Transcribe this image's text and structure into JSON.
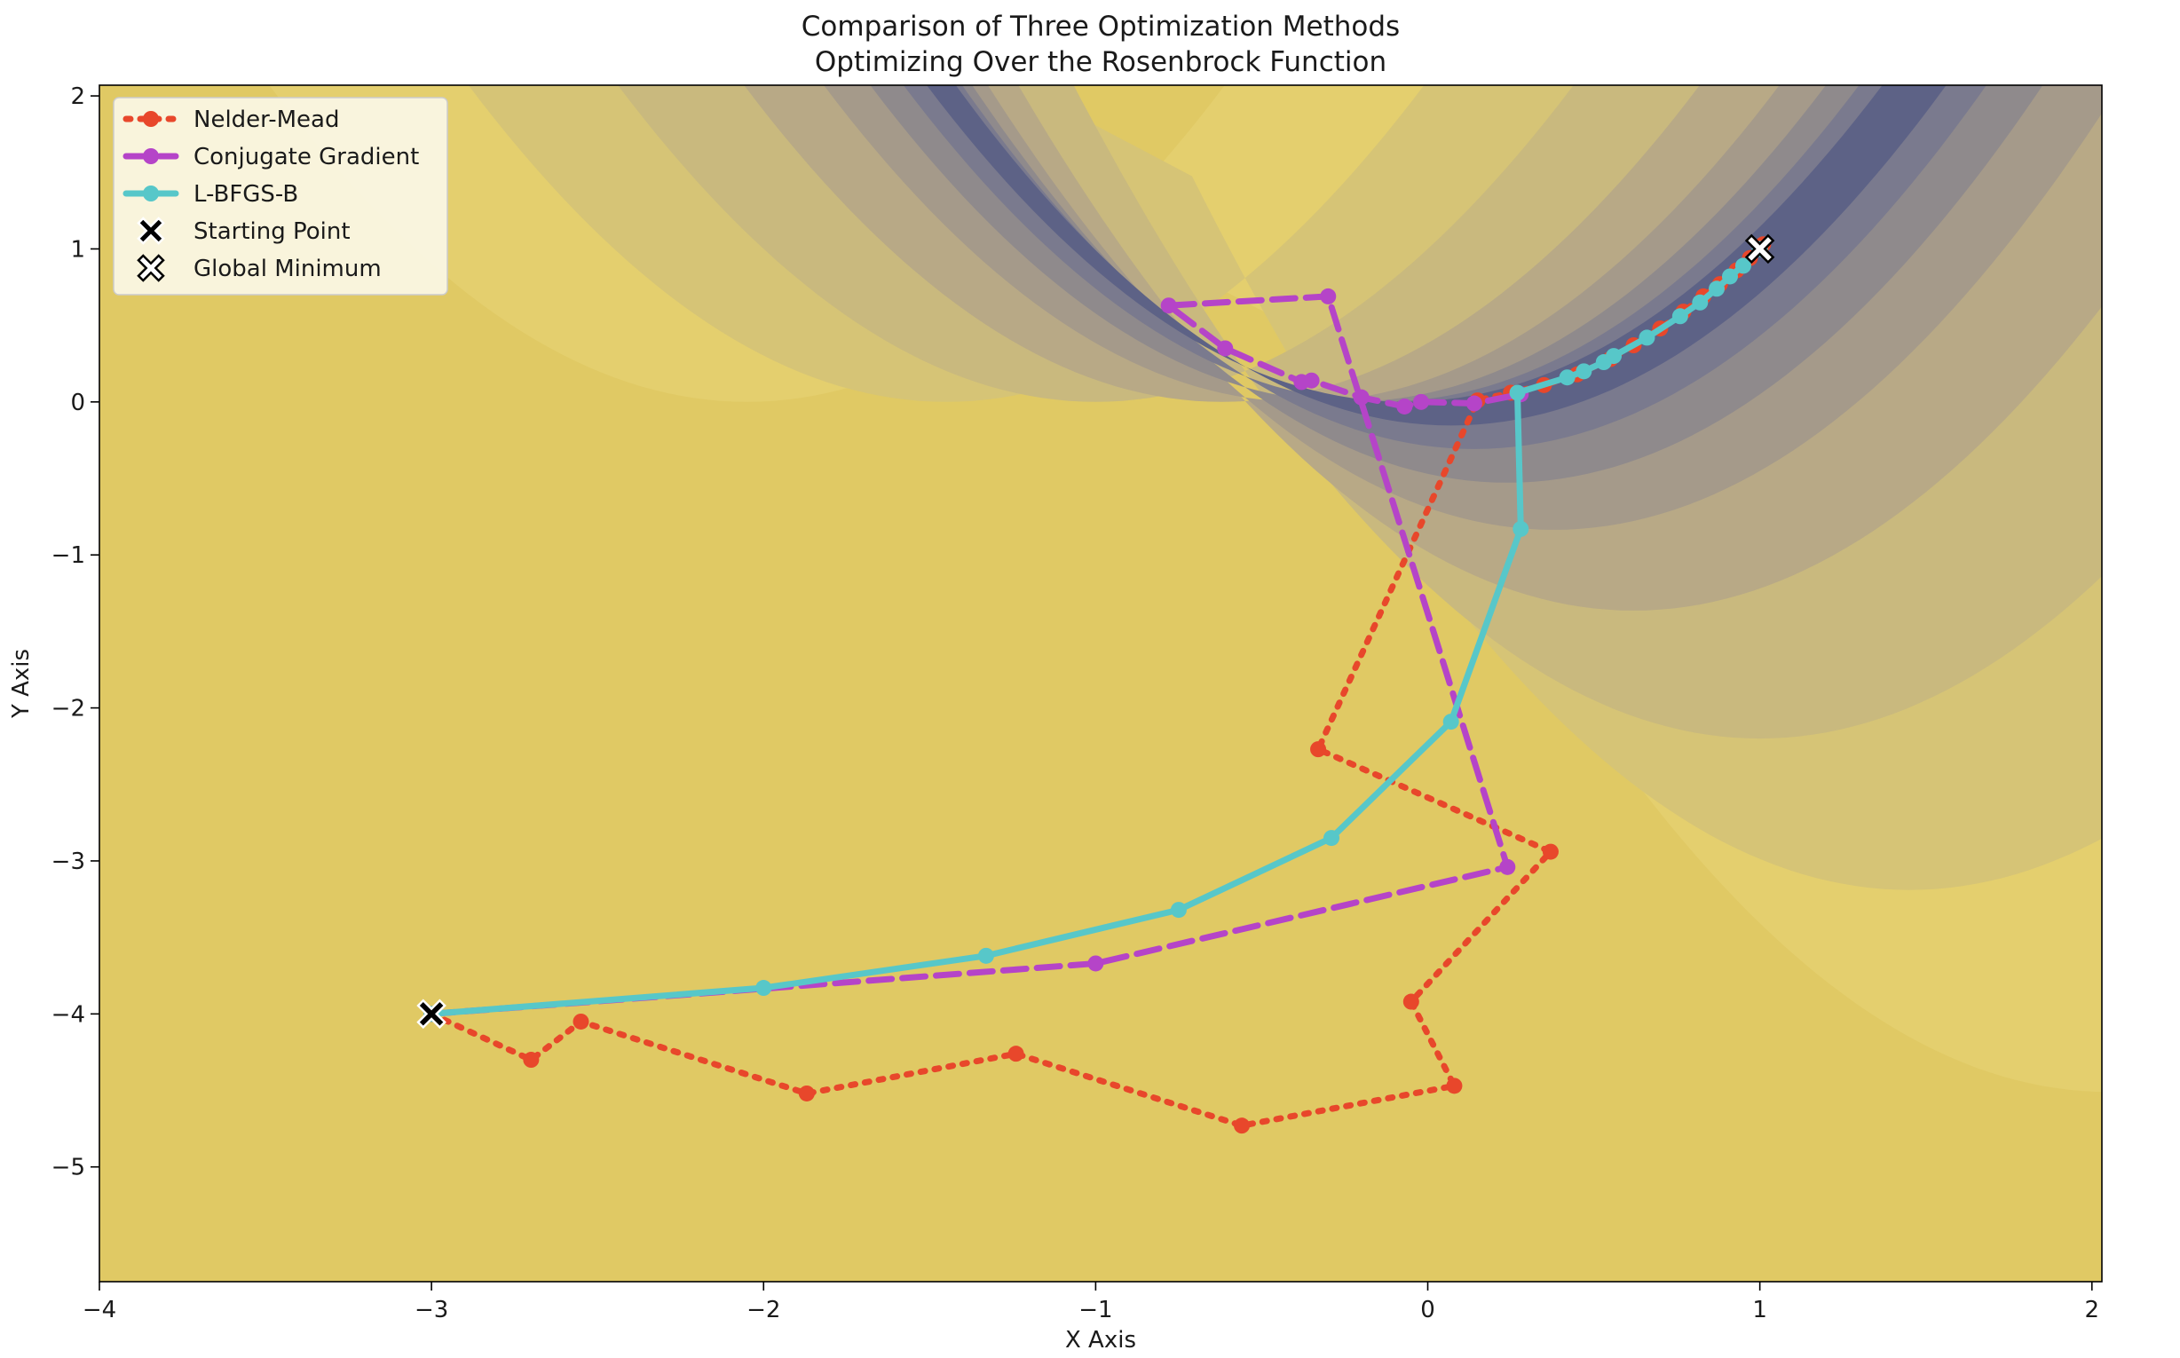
{
  "chart_data": {
    "type": "line",
    "title": "Comparison of Three Optimization Methods",
    "subtitle": "Optimizing Over the Rosenbrock Function",
    "xlabel": "X Axis",
    "ylabel": "Y Axis",
    "xlim": [
      -4,
      2.03
    ],
    "ylim": [
      -5.75,
      2.07
    ],
    "x_ticks": [
      -4,
      -3,
      -2,
      -1,
      0,
      1,
      2
    ],
    "y_ticks": [
      -5,
      -4,
      -3,
      -2,
      -1,
      0,
      1,
      2
    ],
    "x_tick_labels": [
      "−4",
      "−3",
      "−2",
      "−1",
      "0",
      "1",
      "2"
    ],
    "y_tick_labels": [
      "−5",
      "−4",
      "−3",
      "−2",
      "−1",
      "0",
      "1",
      "2"
    ],
    "grid": false,
    "legend_position": "top-left",
    "background_contour": "filled contours of the Rosenbrock function, dark blue-grey near the curved valley y = x^2, yellow far from it",
    "series": [
      {
        "name": "Nelder-Mead",
        "color": "#e8472b",
        "line_style": "dotted",
        "marker": "circle",
        "x": [
          -3.0,
          -2.7,
          -2.55,
          -1.87,
          -1.24,
          -0.56,
          0.08,
          -0.05,
          0.37,
          -0.33,
          0.15,
          0.25,
          0.35,
          0.45,
          0.55,
          0.62,
          0.7,
          0.77,
          0.83,
          0.88,
          0.93,
          0.97,
          1.01
        ],
        "y": [
          -4.0,
          -4.3,
          -4.05,
          -4.52,
          -4.26,
          -4.73,
          -4.47,
          -3.92,
          -2.94,
          -2.27,
          0.01,
          0.06,
          0.11,
          0.18,
          0.28,
          0.37,
          0.48,
          0.59,
          0.69,
          0.77,
          0.86,
          0.94,
          1.03
        ]
      },
      {
        "name": "Conjugate Gradient",
        "color": "#b544c8",
        "line_style": "dashed",
        "marker": "circle",
        "x": [
          -3.0,
          -1.0,
          0.24,
          -0.3,
          -0.78,
          -0.61,
          -0.38,
          -0.35,
          -0.2,
          -0.07,
          -0.02,
          0.14,
          0.28
        ],
        "y": [
          -4.0,
          -3.67,
          -3.04,
          0.69,
          0.63,
          0.35,
          0.13,
          0.14,
          0.03,
          -0.03,
          0.0,
          -0.01,
          0.05
        ]
      },
      {
        "name": "L-BFGS-B",
        "color": "#57c7c9",
        "line_style": "solid",
        "marker": "circle",
        "x": [
          -3.0,
          -2.0,
          -1.33,
          -0.75,
          -0.29,
          0.07,
          0.28,
          0.27,
          0.42,
          0.47,
          0.53,
          0.56,
          0.66,
          0.76,
          0.82,
          0.87,
          0.91,
          0.95,
          1.0
        ],
        "y": [
          -4.0,
          -3.83,
          -3.62,
          -3.32,
          -2.85,
          -2.09,
          -0.83,
          0.06,
          0.16,
          0.2,
          0.26,
          0.3,
          0.42,
          0.56,
          0.65,
          0.74,
          0.82,
          0.89,
          1.0
        ]
      }
    ],
    "markers": [
      {
        "name": "Starting Point",
        "x": -3,
        "y": -4,
        "face_color": "#000000",
        "edge_color": "#ffffff",
        "marker": "X"
      },
      {
        "name": "Global Minimum",
        "x": 1,
        "y": 1,
        "face_color": "#ffffff",
        "edge_color": "#000000",
        "marker": "X"
      }
    ]
  }
}
